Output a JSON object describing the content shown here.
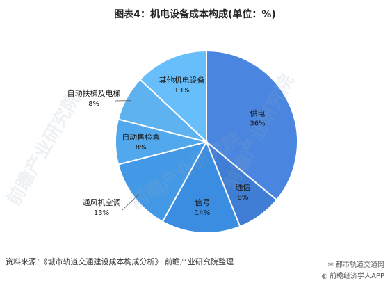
{
  "title": "图表4：机电设备成本构成(单位：%)",
  "source": "资料来源：《城市轨道交通建设成本构成分析》 前瞻产业研究院整理",
  "watermark": {
    "brand": "前瞻产业研究院"
  },
  "attribution": {
    "line1": "都市轨道交通网",
    "line2": "前瞻经济学人APP"
  },
  "colors": {
    "slices": [
      "#4a86df",
      "#3f7ed4",
      "#3a8de0",
      "#4499e6",
      "#52a8ec",
      "#5eb2ef",
      "#68befa"
    ],
    "border": "#ffffff",
    "leader": "#555555"
  },
  "chart_data": {
    "type": "pie",
    "title": "图表4：机电设备成本构成(单位：%)",
    "unit": "%",
    "start": "12 o'clock",
    "direction": "clockwise",
    "slices": [
      {
        "label": "供电",
        "value": 36,
        "value_label": "36%"
      },
      {
        "label": "通信",
        "value": 8,
        "value_label": "8%"
      },
      {
        "label": "信号",
        "value": 14,
        "value_label": "14%"
      },
      {
        "label": "通风机空调",
        "value": 13,
        "value_label": "13%"
      },
      {
        "label": "自动售检票",
        "value": 8,
        "value_label": "8%"
      },
      {
        "label": "自动扶梯及电梯",
        "value": 8,
        "value_label": "8%"
      },
      {
        "label": "其他机电设备",
        "value": 13,
        "value_label": "13%"
      }
    ]
  }
}
